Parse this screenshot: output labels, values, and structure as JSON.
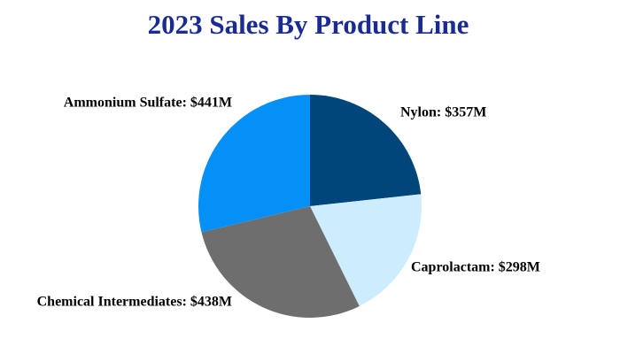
{
  "chart_data": {
    "type": "pie",
    "title": "2023 Sales By Product Line",
    "values": [
      357,
      298,
      438,
      441
    ],
    "value_labels": [
      "Nylon: $357M",
      "Caprolactam: $298M",
      "Chemical Intermediates: $438M",
      "Ammonium Sulfate: $441M"
    ],
    "colors": [
      "#00467a",
      "#cdedfd",
      "#6e6e6e",
      "#0590f8"
    ]
  }
}
